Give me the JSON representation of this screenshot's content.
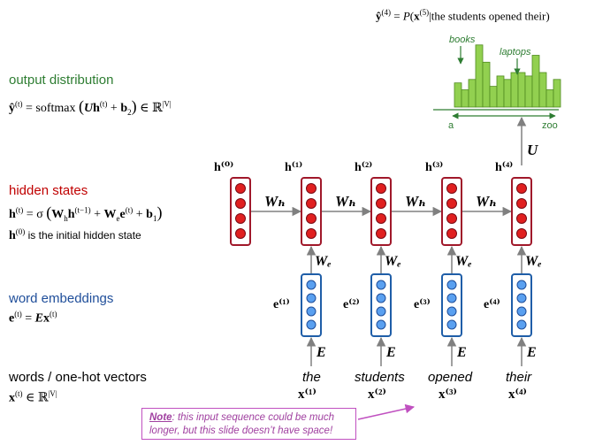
{
  "top_formula": "ŷ⁽⁴⁾ = P(x⁽⁵⁾|the students opened their)",
  "histogram": {
    "label_books": "books",
    "label_laptops": "laptops",
    "axis_start": "a",
    "axis_end": "zoo",
    "bar_values": [
      0.35,
      0.25,
      0.4,
      0.9,
      0.65,
      0.3,
      0.45,
      0.4,
      0.5,
      0.5,
      0.45,
      0.75,
      0.5,
      0.25,
      0.4
    ]
  },
  "sections": {
    "output": {
      "title": "output distribution",
      "formula": "ŷ⁽ᵗ⁾ = softmax(Uh⁽ᵗ⁾ + b₂) ∈ ℝ^|V|"
    },
    "hidden": {
      "title": "hidden states",
      "formula": "h⁽ᵗ⁾ = σ(Wₕh⁽ᵗ⁻¹⁾ + Wₑe⁽ᵗ⁾ + b₁)",
      "note": "h⁽⁰⁾ is the initial hidden state"
    },
    "embeddings": {
      "title": "word embeddings",
      "formula": "e⁽ᵗ⁾ = Ex⁽ᵗ⁾"
    },
    "words": {
      "title": "words / one-hot vectors",
      "formula": "x⁽ᵗ⁾ ∈ ℝ^|V|"
    }
  },
  "diagram": {
    "h_labels": [
      "h⁽⁰⁾",
      "h⁽¹⁾",
      "h⁽²⁾",
      "h⁽³⁾",
      "h⁽⁴⁾"
    ],
    "e_labels": [
      "e⁽¹⁾",
      "e⁽²⁾",
      "e⁽³⁾",
      "e⁽⁴⁾"
    ],
    "x_labels": [
      "x⁽¹⁾",
      "x⁽²⁾",
      "x⁽³⁾",
      "x⁽⁴⁾"
    ],
    "words": [
      "the",
      "students",
      "opened",
      "their"
    ],
    "Wh": "Wₕ",
    "We": "Wₑ",
    "E": "E",
    "U": "U"
  },
  "note": {
    "label": "Note",
    "text": ": this input sequence could be much longer, but this slide doesn’t have space!"
  },
  "colors": {
    "green_text": "#2e7d32",
    "red_text": "#c00000",
    "blue_text": "#1f4e9a",
    "hidden_border": "#a0182a",
    "hidden_dot": "#e02020",
    "embed_border": "#1f5ea8",
    "embed_dot": "#5aa0f0",
    "bar_fill": "#92d050",
    "bar_stroke": "#4f8a1e",
    "note_color": "#a040a0"
  }
}
